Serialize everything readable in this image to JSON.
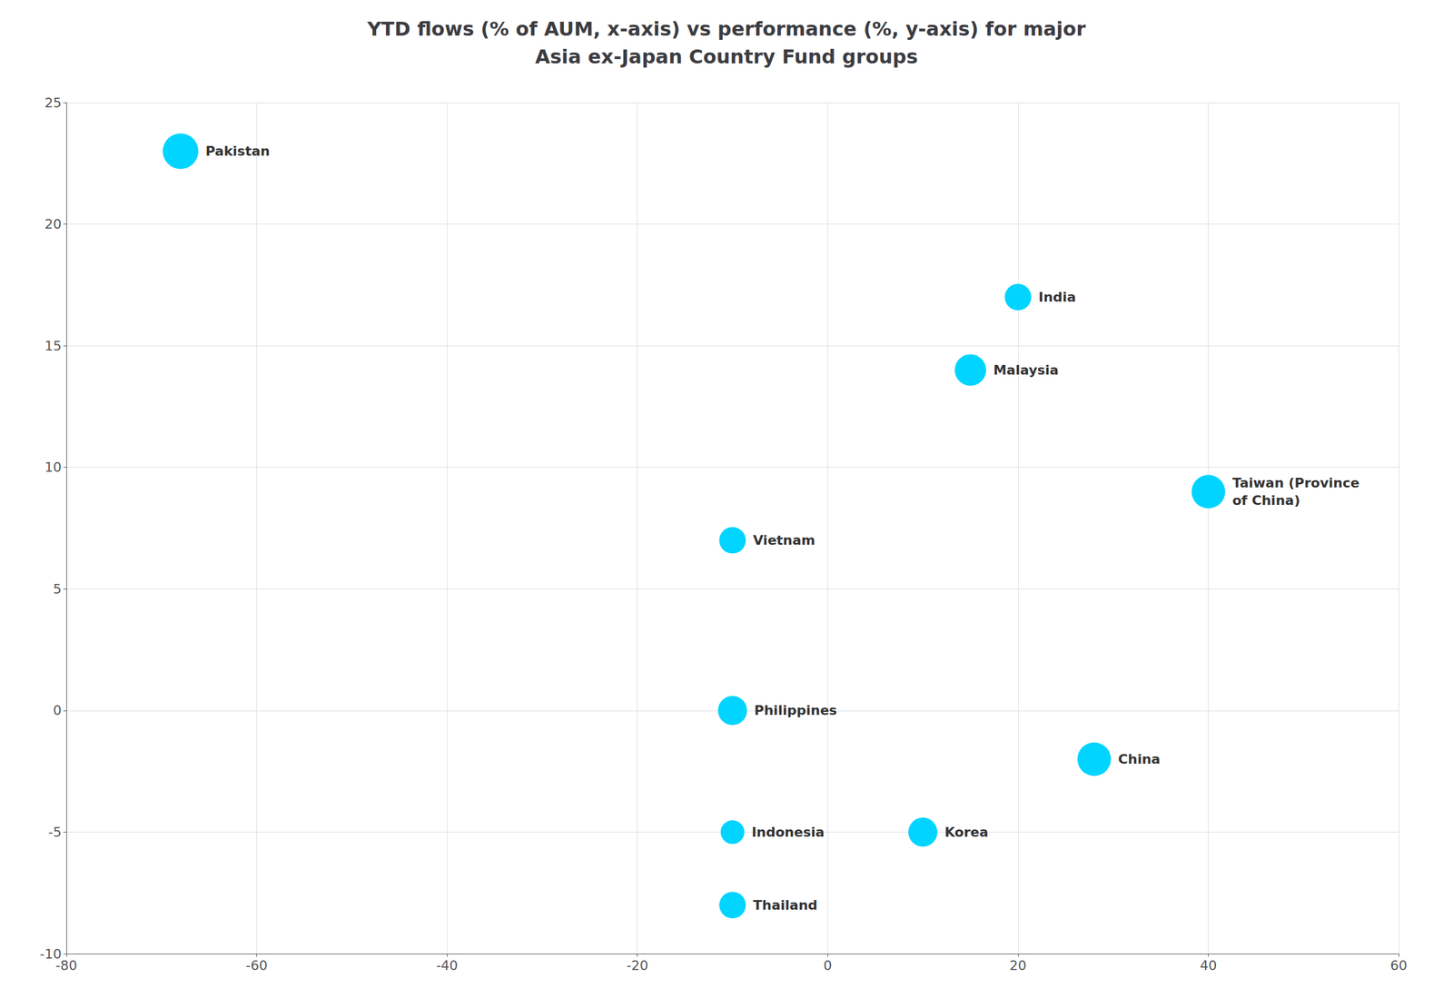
{
  "chart_data": {
    "type": "scatter",
    "title": "YTD flows (% of AUM, x-axis) vs performance (%, y-axis) for major\nAsia ex-Japan Country Fund groups",
    "labels": [
      "Pakistan",
      "India",
      "Malaysia",
      "Taiwan (Province\nof China)",
      "Vietnam",
      "Philippines",
      "Indonesia",
      "Korea",
      "China",
      "Thailand"
    ],
    "x": [
      -68,
      20,
      15,
      40,
      -10,
      -10,
      -10,
      10,
      28,
      -10
    ],
    "values": [
      23,
      17,
      14,
      9,
      7,
      0,
      -5,
      -5,
      -2,
      -8
    ],
    "sizes": [
      1800,
      1000,
      1400,
      1600,
      1000,
      1200,
      800,
      1200,
      1600,
      1000
    ],
    "color": "#00d4ff",
    "xlim": [
      -80,
      60
    ],
    "xticks": [
      -80,
      -60,
      -40,
      -20,
      0,
      20,
      40,
      60
    ],
    "ylim": [
      -10,
      25
    ],
    "yticks": [
      -10,
      -5,
      0,
      5,
      10,
      15,
      20,
      25
    ],
    "grid": true
  }
}
